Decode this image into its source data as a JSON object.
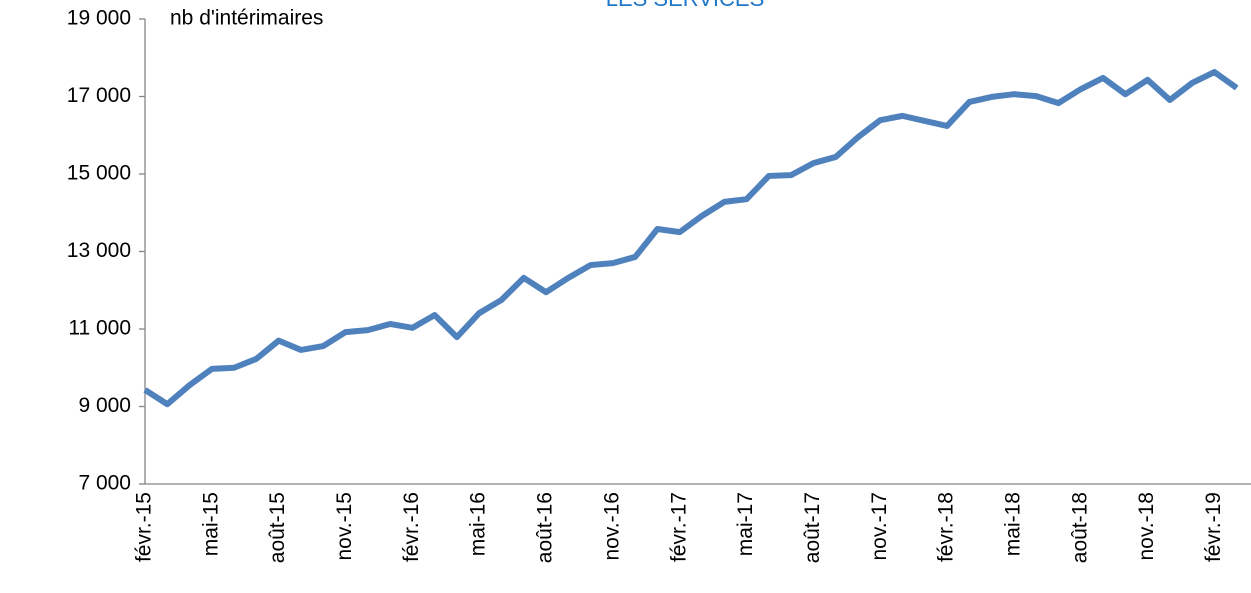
{
  "chart_data": {
    "type": "line",
    "title": "LES SERVICES",
    "y_label": "nb d'intérimaires",
    "categories": [
      "févr.-15",
      null,
      null,
      "mai-15",
      null,
      null,
      "août-15",
      null,
      null,
      "nov.-15",
      null,
      null,
      "févr.-16",
      null,
      null,
      "mai-16",
      null,
      null,
      "août-16",
      null,
      null,
      "nov.-16",
      null,
      null,
      "févr.-17",
      null,
      null,
      "mai-17",
      null,
      null,
      "août-17",
      null,
      null,
      "nov.-17",
      null,
      null,
      "févr.-18",
      null,
      null,
      "mai-18",
      null,
      null,
      "août-18",
      null,
      null,
      "nov.-18",
      null,
      null,
      "févr.-19",
      null
    ],
    "series": [
      {
        "name": "nb d'intérimaires",
        "color": "#4f81bd",
        "values": [
          9430,
          9060,
          9550,
          9970,
          10000,
          10230,
          10700,
          10460,
          10560,
          10920,
          10970,
          11130,
          11030,
          11360,
          10790,
          11410,
          11750,
          12320,
          11950,
          12320,
          12650,
          12700,
          12860,
          13580,
          13500,
          13920,
          14280,
          14350,
          14950,
          14970,
          15280,
          15440,
          15950,
          16390,
          16500,
          16370,
          16240,
          16860,
          16990,
          17060,
          17010,
          16830,
          17190,
          17480,
          17060,
          17430,
          16910,
          17350,
          17630,
          17220
        ]
      }
    ],
    "ylim": [
      7000,
      19000
    ],
    "yticks": [
      {
        "value": 7000,
        "label": "7 000"
      },
      {
        "value": 9000,
        "label": "9 000"
      },
      {
        "value": 11000,
        "label": "11 000"
      },
      {
        "value": 13000,
        "label": "13 000"
      },
      {
        "value": 15000,
        "label": "15 000"
      },
      {
        "value": 17000,
        "label": "17 000"
      },
      {
        "value": 19000,
        "label": "19 000"
      }
    ],
    "grid": false
  }
}
